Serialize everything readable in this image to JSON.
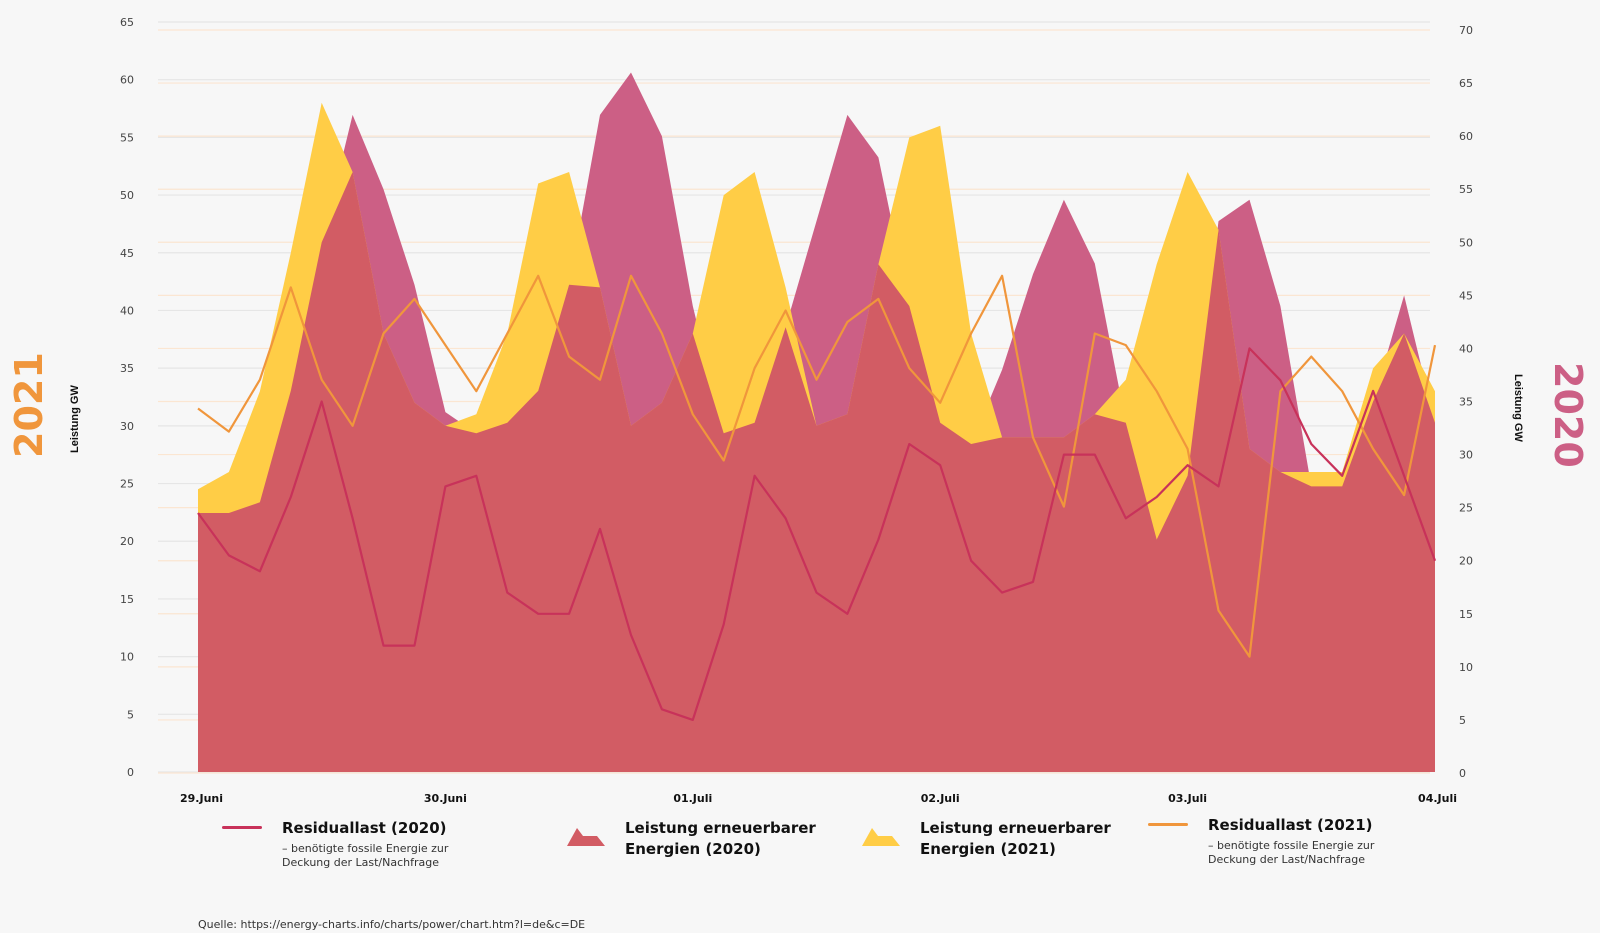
{
  "chart_data": {
    "type": "area",
    "title": "",
    "xlabel": "",
    "x_tick_labels": [
      "29.Juni",
      "30.Juni",
      "01.Juli",
      "02.Juli",
      "03.Juli",
      "04.Juli"
    ],
    "x_unit": "hours since 29.Juni 00:00",
    "x_range": [
      0,
      120
    ],
    "y_left": {
      "label": "Leistung GW",
      "year_label": "2021",
      "range": [
        0,
        65
      ],
      "ticks": [
        0,
        5,
        10,
        15,
        20,
        25,
        30,
        35,
        40,
        45,
        50,
        55,
        60,
        65
      ]
    },
    "y_right": {
      "label": "Leistung GW",
      "year_label": "2020",
      "range": [
        0,
        70
      ],
      "ticks": [
        0,
        5,
        10,
        15,
        20,
        25,
        30,
        35,
        40,
        45,
        50,
        55,
        60,
        65,
        70
      ]
    },
    "grid": true,
    "x": [
      0,
      3,
      6,
      9,
      12,
      15,
      18,
      21,
      24,
      27,
      30,
      33,
      36,
      39,
      42,
      45,
      48,
      51,
      54,
      57,
      60,
      63,
      66,
      69,
      72,
      75,
      78,
      81,
      84,
      87,
      90,
      93,
      96,
      99,
      102,
      105,
      108,
      111,
      114,
      117,
      120
    ],
    "series": [
      {
        "name": "Leistung erneuerbarer Energien (2020)",
        "kind": "area",
        "axis": "right",
        "color": "#cc5f85",
        "values": [
          24.5,
          24.5,
          25.5,
          36,
          50,
          62,
          55,
          46,
          34,
          32,
          33,
          36,
          46,
          62,
          66,
          60,
          44,
          32,
          33,
          42,
          52,
          62,
          58,
          44,
          33,
          31,
          38,
          47,
          54,
          48,
          33,
          22,
          28,
          52,
          54,
          44,
          27,
          27,
          35,
          45,
          33
        ]
      },
      {
        "name": "Leistung erneuerbarer Energien (2021)",
        "kind": "area",
        "axis": "left",
        "color": "#ffcd46",
        "values": [
          24.5,
          26,
          33,
          45,
          58,
          52,
          38,
          32,
          30,
          31,
          38,
          51,
          52,
          42,
          30,
          32,
          38,
          50,
          52,
          42,
          30,
          31,
          44,
          55,
          56,
          38,
          29,
          29,
          29,
          31,
          34,
          44,
          52,
          47,
          28,
          26,
          26,
          26,
          35,
          38,
          33
        ]
      },
      {
        "name": "Residuallast (2020)",
        "kind": "line",
        "axis": "right",
        "color": "#c8325a",
        "values": [
          24.5,
          20.5,
          19,
          26,
          35,
          24,
          12,
          12,
          27,
          28,
          17,
          15,
          15,
          23,
          13,
          6,
          5,
          14,
          28,
          24,
          17,
          15,
          22,
          31,
          29,
          20,
          17,
          18,
          30,
          30,
          24,
          26,
          29,
          27,
          40,
          37,
          31,
          28,
          36,
          28,
          20
        ]
      },
      {
        "name": "Residuallast (2021)",
        "kind": "line",
        "axis": "left",
        "color": "#f0963c",
        "values": [
          31.5,
          29.5,
          34,
          42,
          34,
          30,
          38,
          41,
          37,
          33,
          38,
          43,
          36,
          34,
          43,
          38,
          31,
          27,
          35,
          40,
          34,
          39,
          41,
          35,
          32,
          38,
          43,
          29,
          23,
          38,
          37,
          33,
          28,
          14,
          10,
          33,
          36,
          33,
          28,
          24,
          37
        ]
      }
    ],
    "legend_position": "bottom",
    "legend": [
      {
        "label": "Residuallast (2020)",
        "sublabel_lines": [
          "– benötigte fossile Energie zur",
          "Deckung der Last/Nachfrage"
        ],
        "symbol": "line",
        "color": "#c8325a"
      },
      {
        "label_lines": [
          "Leistung erneuerbarer",
          "Energien (2020)"
        ],
        "symbol": "area",
        "color": "#d25c64"
      },
      {
        "label_lines": [
          "Leistung erneuerbarer",
          "Energien (2021)"
        ],
        "symbol": "area",
        "color": "#ffcd46"
      },
      {
        "label": "Residuallast (2021)",
        "sublabel_lines": [
          "– benötigte fossile Energie zur",
          "Deckung der Last/Nachfrage"
        ],
        "symbol": "line",
        "color": "#f0963c"
      }
    ],
    "overlap_color": "#d25c64",
    "source": "Quelle: https://energy-charts.info/charts/power/chart.htm?l=de&c=DE"
  }
}
